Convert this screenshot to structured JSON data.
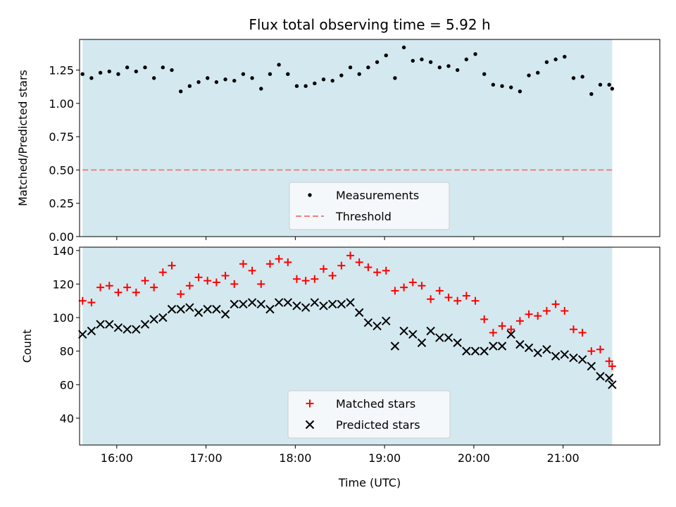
{
  "chart_data": [
    {
      "type": "scatter",
      "title": "Flux total observing time = 5.92 h",
      "xlabel": "",
      "ylabel": "Matched/Predicted stars",
      "xlim": [
        "15:35",
        "22:05"
      ],
      "ylim": [
        0,
        1.48
      ],
      "yticks": [
        "0.00",
        "0.25",
        "0.50",
        "0.75",
        "1.00",
        "1.25"
      ],
      "shaded_span": [
        "15:37",
        "21:33"
      ],
      "shade_color": "#d4e9ef",
      "legend_position": "bottom-center",
      "series": [
        {
          "name": "Measurements",
          "marker": "dot",
          "color": "#000000",
          "x": [
            "15:37",
            "15:43",
            "15:49",
            "15:55",
            "16:01",
            "16:07",
            "16:13",
            "16:19",
            "16:25",
            "16:31",
            "16:37",
            "16:43",
            "16:49",
            "16:55",
            "17:01",
            "17:07",
            "17:13",
            "17:19",
            "17:25",
            "17:31",
            "17:37",
            "17:43",
            "17:49",
            "17:55",
            "18:01",
            "18:07",
            "18:13",
            "18:19",
            "18:25",
            "18:31",
            "18:37",
            "18:43",
            "18:49",
            "18:55",
            "19:01",
            "19:07",
            "19:13",
            "19:19",
            "19:25",
            "19:31",
            "19:37",
            "19:43",
            "19:49",
            "19:55",
            "20:01",
            "20:07",
            "20:13",
            "20:19",
            "20:25",
            "20:31",
            "20:37",
            "20:43",
            "20:49",
            "20:55",
            "21:01",
            "21:07",
            "21:13",
            "21:19",
            "21:25",
            "21:31",
            "21:33"
          ],
          "y": [
            1.22,
            1.19,
            1.23,
            1.24,
            1.22,
            1.27,
            1.24,
            1.27,
            1.19,
            1.27,
            1.25,
            1.09,
            1.13,
            1.16,
            1.19,
            1.16,
            1.18,
            1.17,
            1.22,
            1.19,
            1.11,
            1.22,
            1.29,
            1.22,
            1.13,
            1.13,
            1.15,
            1.18,
            1.17,
            1.21,
            1.27,
            1.22,
            1.27,
            1.31,
            1.36,
            1.19,
            1.42,
            1.32,
            1.33,
            1.31,
            1.27,
            1.28,
            1.25,
            1.33,
            1.37,
            1.22,
            1.14,
            1.13,
            1.12,
            1.09,
            1.21,
            1.23,
            1.31,
            1.33,
            1.35,
            1.19,
            1.2,
            1.07,
            1.14,
            1.14,
            1.11
          ]
        },
        {
          "name": "Threshold",
          "marker": "dashed-line",
          "color": "#f08080",
          "x": [
            "15:37",
            "21:33"
          ],
          "y": [
            0.5,
            0.5
          ]
        }
      ]
    },
    {
      "type": "scatter",
      "title": "",
      "xlabel": "Time (UTC)",
      "ylabel": "Count",
      "xlim": [
        "15:35",
        "22:05"
      ],
      "ylim": [
        24,
        142
      ],
      "xticks": [
        "16:00",
        "17:00",
        "18:00",
        "19:00",
        "20:00",
        "21:00"
      ],
      "yticks": [
        "40",
        "60",
        "80",
        "100",
        "120",
        "140"
      ],
      "shaded_span": [
        "15:37",
        "21:33"
      ],
      "shade_color": "#d4e9ef",
      "legend_position": "bottom-center",
      "series": [
        {
          "name": "Matched stars",
          "marker": "plus",
          "color": "#ff0000",
          "x": [
            "15:37",
            "15:43",
            "15:49",
            "15:55",
            "16:01",
            "16:07",
            "16:13",
            "16:19",
            "16:25",
            "16:31",
            "16:37",
            "16:43",
            "16:49",
            "16:55",
            "17:01",
            "17:07",
            "17:13",
            "17:19",
            "17:25",
            "17:31",
            "17:37",
            "17:43",
            "17:49",
            "17:55",
            "18:01",
            "18:07",
            "18:13",
            "18:19",
            "18:25",
            "18:31",
            "18:37",
            "18:43",
            "18:49",
            "18:55",
            "19:01",
            "19:07",
            "19:13",
            "19:19",
            "19:25",
            "19:31",
            "19:37",
            "19:43",
            "19:49",
            "19:55",
            "20:01",
            "20:07",
            "20:13",
            "20:19",
            "20:25",
            "20:31",
            "20:37",
            "20:43",
            "20:49",
            "20:55",
            "21:01",
            "21:07",
            "21:13",
            "21:19",
            "21:25",
            "21:31",
            "21:33"
          ],
          "y": [
            110,
            109,
            118,
            119,
            115,
            118,
            115,
            122,
            118,
            127,
            131,
            114,
            119,
            124,
            122,
            121,
            125,
            120,
            132,
            128,
            120,
            132,
            135,
            133,
            123,
            122,
            123,
            129,
            125,
            131,
            137,
            133,
            130,
            127,
            128,
            116,
            118,
            121,
            119,
            111,
            116,
            112,
            110,
            113,
            110,
            99,
            91,
            95,
            93,
            98,
            102,
            101,
            104,
            108,
            104,
            93,
            91,
            80,
            81,
            74,
            71
          ]
        },
        {
          "name": "Predicted stars",
          "marker": "x",
          "color": "#000000",
          "x": [
            "15:37",
            "15:43",
            "15:49",
            "15:55",
            "16:01",
            "16:07",
            "16:13",
            "16:19",
            "16:25",
            "16:31",
            "16:37",
            "16:43",
            "16:49",
            "16:55",
            "17:01",
            "17:07",
            "17:13",
            "17:19",
            "17:25",
            "17:31",
            "17:37",
            "17:43",
            "17:49",
            "17:55",
            "18:01",
            "18:07",
            "18:13",
            "18:19",
            "18:25",
            "18:31",
            "18:37",
            "18:43",
            "18:49",
            "18:55",
            "19:01",
            "19:07",
            "19:13",
            "19:19",
            "19:25",
            "19:31",
            "19:37",
            "19:43",
            "19:49",
            "19:55",
            "20:01",
            "20:07",
            "20:13",
            "20:19",
            "20:25",
            "20:31",
            "20:37",
            "20:43",
            "20:49",
            "20:55",
            "21:01",
            "21:07",
            "21:13",
            "21:19",
            "21:25",
            "21:31",
            "21:33"
          ],
          "y": [
            90,
            92,
            96,
            96,
            94,
            93,
            93,
            96,
            99,
            100,
            105,
            105,
            106,
            103,
            105,
            105,
            102,
            108,
            108,
            109,
            108,
            105,
            109,
            109,
            107,
            106,
            109,
            107,
            108,
            108,
            109,
            103,
            97,
            95,
            98,
            83,
            92,
            90,
            85,
            92,
            88,
            88,
            85,
            80,
            80,
            80,
            83,
            83,
            90,
            84,
            82,
            79,
            81,
            77,
            78,
            76,
            75,
            71,
            65,
            64,
            60
          ]
        }
      ]
    }
  ]
}
